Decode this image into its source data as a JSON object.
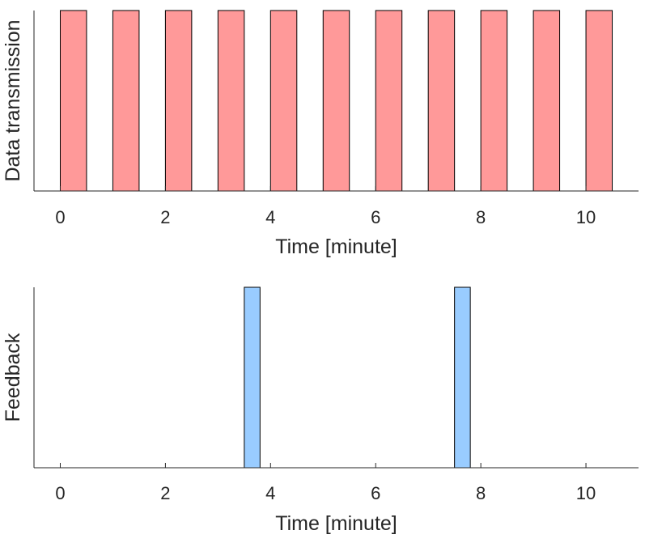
{
  "chart_data": [
    {
      "type": "bar",
      "xlabel": "Time [minute]",
      "ylabel": "Data transmission",
      "xlim": [
        -0.5,
        11
      ],
      "ylim": [
        0,
        1
      ],
      "xticks": [
        0,
        2,
        4,
        6,
        8,
        10
      ],
      "yticks": [],
      "grid": false,
      "bar_color": "#ff9999",
      "bars": [
        {
          "start": 0.0,
          "end": 0.5,
          "value": 1
        },
        {
          "start": 1.0,
          "end": 1.5,
          "value": 1
        },
        {
          "start": 2.0,
          "end": 2.5,
          "value": 1
        },
        {
          "start": 3.0,
          "end": 3.5,
          "value": 1
        },
        {
          "start": 4.0,
          "end": 4.5,
          "value": 1
        },
        {
          "start": 5.0,
          "end": 5.5,
          "value": 1
        },
        {
          "start": 6.0,
          "end": 6.5,
          "value": 1
        },
        {
          "start": 7.0,
          "end": 7.5,
          "value": 1
        },
        {
          "start": 8.0,
          "end": 8.5,
          "value": 1
        },
        {
          "start": 9.0,
          "end": 9.5,
          "value": 1
        },
        {
          "start": 10.0,
          "end": 10.5,
          "value": 1
        }
      ]
    },
    {
      "type": "bar",
      "xlabel": "Time [minute]",
      "ylabel": "Feedback",
      "xlim": [
        -0.5,
        11
      ],
      "ylim": [
        0,
        1
      ],
      "xticks": [
        0,
        2,
        4,
        6,
        8,
        10
      ],
      "yticks": [],
      "grid": false,
      "bar_color": "#99ccff",
      "bars": [
        {
          "start": 3.5,
          "end": 3.8,
          "value": 1
        },
        {
          "start": 7.5,
          "end": 7.8,
          "value": 1
        }
      ]
    }
  ]
}
